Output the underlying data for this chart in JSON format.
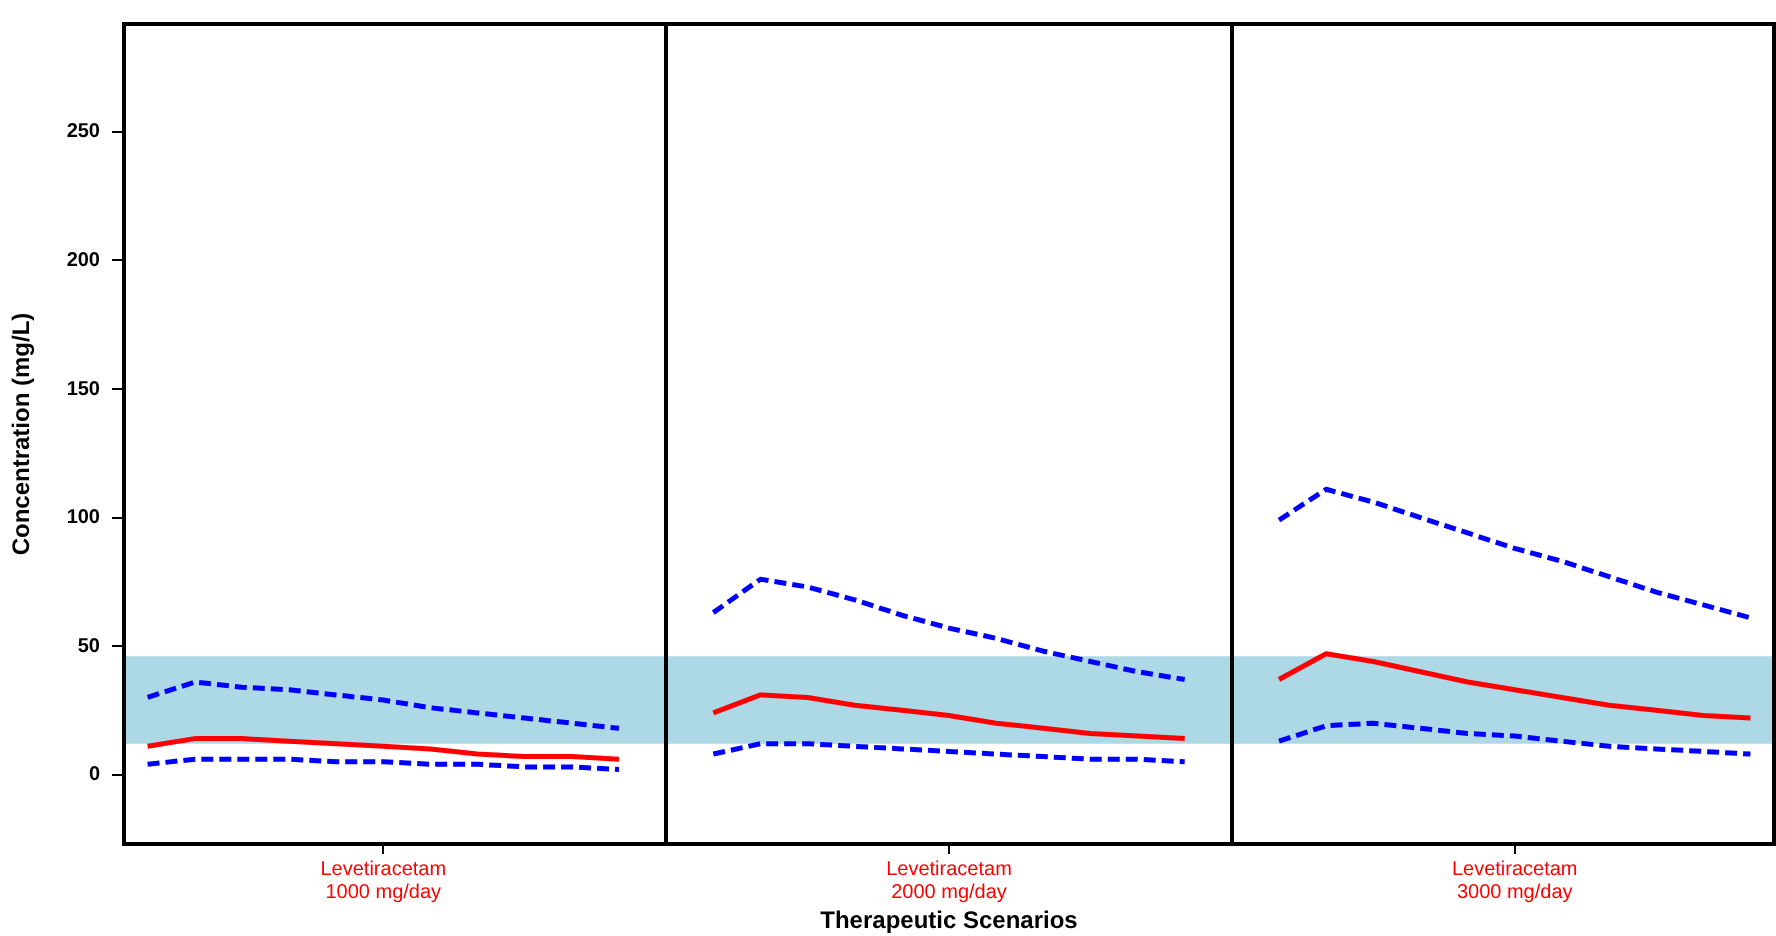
{
  "chart_data": {
    "type": "line",
    "xlabel": "Therapeutic Scenarios",
    "ylabel": "Concentration (mg/L)",
    "categories": [
      null,
      null,
      null,
      null,
      null,
      "Levetiracetam\n1000 mg/day",
      null,
      null,
      null,
      null,
      null,
      null,
      null,
      null,
      null,
      null,
      null,
      "Levetiracetam\n2000 mg/day",
      null,
      null,
      null,
      null,
      null,
      null,
      null,
      null,
      null,
      null,
      null,
      "Levetiracetam\n3000 mg/day",
      null,
      null,
      null,
      null,
      null
    ],
    "ylim": [
      -27,
      292
    ],
    "yticks": [
      0,
      50,
      100,
      150,
      200,
      250
    ],
    "grid": false,
    "legend": false,
    "marker": "none",
    "bands": [
      {
        "axis": "y",
        "from": 12,
        "to": 46,
        "color": "#add8e6"
      }
    ],
    "series": [
      {
        "color": "#0000ff",
        "line_style": "dashed",
        "values": [
          30,
          36,
          34,
          33,
          31,
          29,
          26,
          24,
          22,
          20,
          18,
          null,
          63,
          76,
          73,
          68,
          62,
          57,
          53,
          48,
          44,
          40,
          37,
          null,
          99,
          111,
          106,
          100,
          94,
          88,
          83,
          77,
          71,
          66,
          61
        ]
      },
      {
        "color": "#ff0000",
        "line_style": "solid",
        "values": [
          11,
          14,
          14,
          13,
          12,
          11,
          10,
          8,
          7,
          7,
          6,
          null,
          24,
          31,
          30,
          27,
          25,
          23,
          20,
          18,
          16,
          15,
          14,
          null,
          37,
          47,
          44,
          40,
          36,
          33,
          30,
          27,
          25,
          23,
          22
        ]
      },
      {
        "color": "#0000ff",
        "line_style": "dashed",
        "values": [
          4,
          6,
          6,
          6,
          5,
          5,
          4,
          4,
          3,
          3,
          2,
          null,
          8,
          12,
          12,
          11,
          10,
          9,
          8,
          7,
          6,
          6,
          5,
          null,
          13,
          19,
          20,
          18,
          16,
          15,
          13,
          11,
          10,
          9,
          8
        ]
      }
    ]
  }
}
